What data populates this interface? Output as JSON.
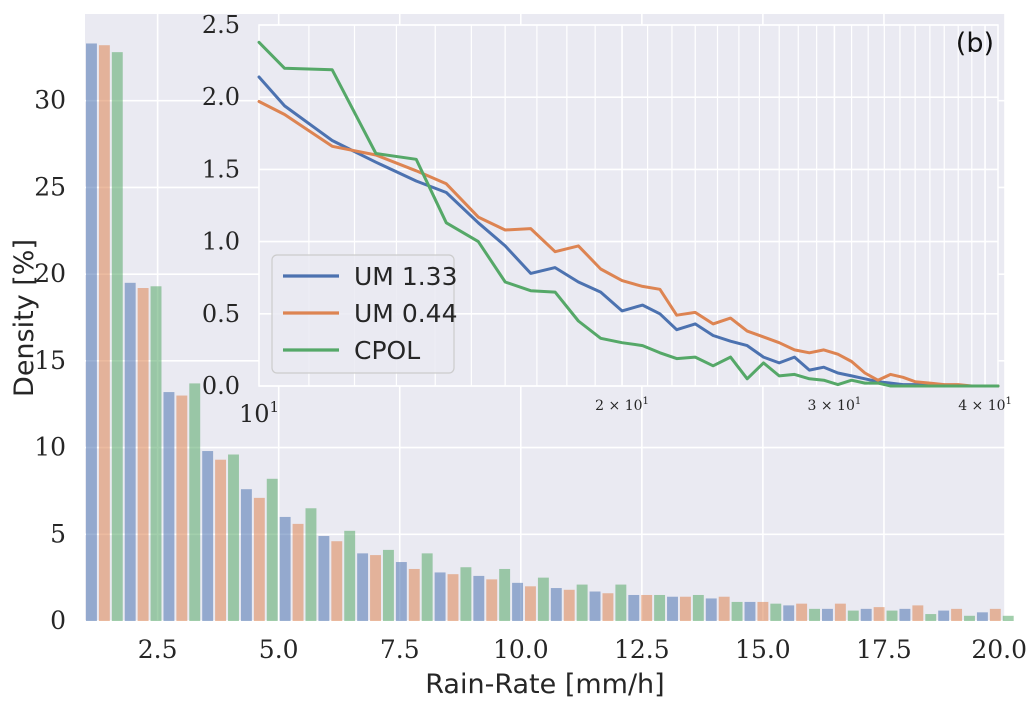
{
  "chart_data": [
    {
      "type": "bar",
      "panel": "main",
      "xlabel": "Rain-Rate [mm/h]",
      "ylabel": "Density [%]",
      "xlim": [
        1,
        20
      ],
      "ylim": [
        0,
        35
      ],
      "xticks": [
        "2.5",
        "5.0",
        "7.5",
        "10.0",
        "12.5",
        "15.0",
        "17.5",
        "20.0"
      ],
      "yticks": [
        "0",
        "5",
        "10",
        "15",
        "20",
        "25",
        "30"
      ],
      "bin_width": 0.8,
      "bin_starts": [
        1.0,
        1.8,
        2.6,
        3.4,
        4.2,
        5.0,
        5.8,
        6.6,
        7.4,
        8.2,
        9.0,
        9.8,
        10.6,
        11.4,
        12.2,
        13.0,
        13.8,
        14.6,
        15.4,
        16.2,
        17.0,
        17.8,
        18.6,
        19.4
      ],
      "series": [
        {
          "name": "UM 1.33",
          "color": "#4c72b0",
          "values": [
            33.3,
            19.5,
            13.2,
            9.8,
            7.6,
            6.0,
            4.9,
            3.9,
            3.4,
            2.8,
            2.6,
            2.2,
            1.9,
            1.7,
            1.5,
            1.4,
            1.3,
            1.1,
            0.9,
            0.7,
            0.7,
            0.7,
            0.6,
            0.5
          ]
        },
        {
          "name": "UM 0.44",
          "color": "#dd8452",
          "values": [
            33.2,
            19.2,
            13.0,
            9.3,
            7.1,
            5.6,
            4.6,
            3.8,
            3.0,
            2.7,
            2.4,
            2.0,
            1.8,
            1.6,
            1.5,
            1.4,
            1.4,
            1.1,
            1.0,
            1.0,
            0.8,
            0.9,
            0.7,
            0.7
          ]
        },
        {
          "name": "CPOL",
          "color": "#55a868",
          "values": [
            32.8,
            19.3,
            13.7,
            9.6,
            8.2,
            6.5,
            5.2,
            4.1,
            3.9,
            3.1,
            3.0,
            2.5,
            2.1,
            2.1,
            1.5,
            1.5,
            1.1,
            1.0,
            0.7,
            0.6,
            0.6,
            0.4,
            0.3,
            0.3
          ]
        }
      ]
    },
    {
      "type": "line",
      "panel": "inset",
      "panel_label": "(b)",
      "xscale": "log",
      "xlim": [
        10,
        41
      ],
      "ylim": [
        0,
        2.5
      ],
      "xtick_major": {
        "value": 10,
        "label": "10",
        "exp": "1"
      },
      "xtick_minor": [
        {
          "value": 20,
          "label": "2 × 10",
          "exp": "1"
        },
        {
          "value": 30,
          "label": "3 × 10",
          "exp": "1"
        },
        {
          "value": 40,
          "label": "4 × 10",
          "exp": "1"
        }
      ],
      "yticks": [
        "0.0",
        "0.5",
        "1.0",
        "1.5",
        "2.0",
        "2.5"
      ],
      "legend": {
        "location": "lower-left",
        "entries": [
          "UM 1.33",
          "UM 0.44",
          "CPOL"
        ]
      },
      "series": [
        {
          "name": "UM 1.33",
          "color": "#4c72b0",
          "x": [
            10,
            10.5,
            11.5,
            12.5,
            13.5,
            14.3,
            15.2,
            16,
            16.8,
            17.6,
            18.4,
            19.2,
            20,
            20.8,
            21.5,
            22.2,
            23,
            23.8,
            24.6,
            25.4,
            26.2,
            27,
            27.8,
            28.6,
            29.4,
            30.2,
            31,
            31.8,
            32.6,
            33.4,
            34.2,
            35,
            36,
            37,
            38,
            39,
            40,
            41
          ],
          "y": [
            2.14,
            1.94,
            1.7,
            1.55,
            1.42,
            1.34,
            1.13,
            0.97,
            0.78,
            0.82,
            0.72,
            0.65,
            0.52,
            0.56,
            0.5,
            0.39,
            0.43,
            0.35,
            0.31,
            0.28,
            0.2,
            0.16,
            0.2,
            0.11,
            0.13,
            0.09,
            0.07,
            0.05,
            0.03,
            0.02,
            0.01,
            0.01,
            0.01,
            0.0,
            0.0,
            0.0,
            0.0,
            0.0
          ]
        },
        {
          "name": "UM 0.44",
          "color": "#dd8452",
          "x": [
            10,
            10.5,
            11.5,
            12.5,
            13.5,
            14.3,
            15.2,
            16,
            16.8,
            17.6,
            18.4,
            19.2,
            20,
            20.8,
            21.5,
            22.2,
            23,
            23.8,
            24.6,
            25.4,
            26.2,
            27,
            27.8,
            28.6,
            29.4,
            30.2,
            31,
            31.8,
            32.6,
            33.4,
            34.2,
            35,
            36,
            37,
            38,
            39,
            40,
            41
          ],
          "y": [
            1.97,
            1.88,
            1.66,
            1.6,
            1.49,
            1.4,
            1.17,
            1.08,
            1.09,
            0.93,
            0.97,
            0.81,
            0.73,
            0.69,
            0.67,
            0.49,
            0.51,
            0.43,
            0.47,
            0.38,
            0.34,
            0.3,
            0.25,
            0.23,
            0.25,
            0.22,
            0.17,
            0.09,
            0.04,
            0.08,
            0.06,
            0.03,
            0.02,
            0.01,
            0.01,
            0.0,
            0.0,
            0.0
          ]
        },
        {
          "name": "CPOL",
          "color": "#55a868",
          "x": [
            10,
            10.5,
            11.5,
            12.5,
            13.5,
            14.3,
            15.2,
            16,
            16.8,
            17.6,
            18.4,
            19.2,
            20,
            20.8,
            21.5,
            22.2,
            23,
            23.8,
            24.6,
            25.4,
            26.2,
            27,
            27.8,
            28.6,
            29.4,
            30.2,
            31,
            31.8,
            32.6,
            33.4,
            34.2,
            35,
            36,
            37,
            38,
            39,
            40,
            41
          ],
          "y": [
            2.38,
            2.2,
            2.19,
            1.61,
            1.57,
            1.13,
            1.0,
            0.72,
            0.66,
            0.65,
            0.45,
            0.33,
            0.3,
            0.28,
            0.23,
            0.19,
            0.2,
            0.14,
            0.2,
            0.05,
            0.16,
            0.07,
            0.08,
            0.05,
            0.04,
            0.01,
            0.04,
            0.02,
            0.02,
            0.0,
            0.0,
            0.0,
            0.0,
            0.0,
            0.0,
            0.0,
            0.0,
            0.0
          ]
        }
      ]
    }
  ]
}
